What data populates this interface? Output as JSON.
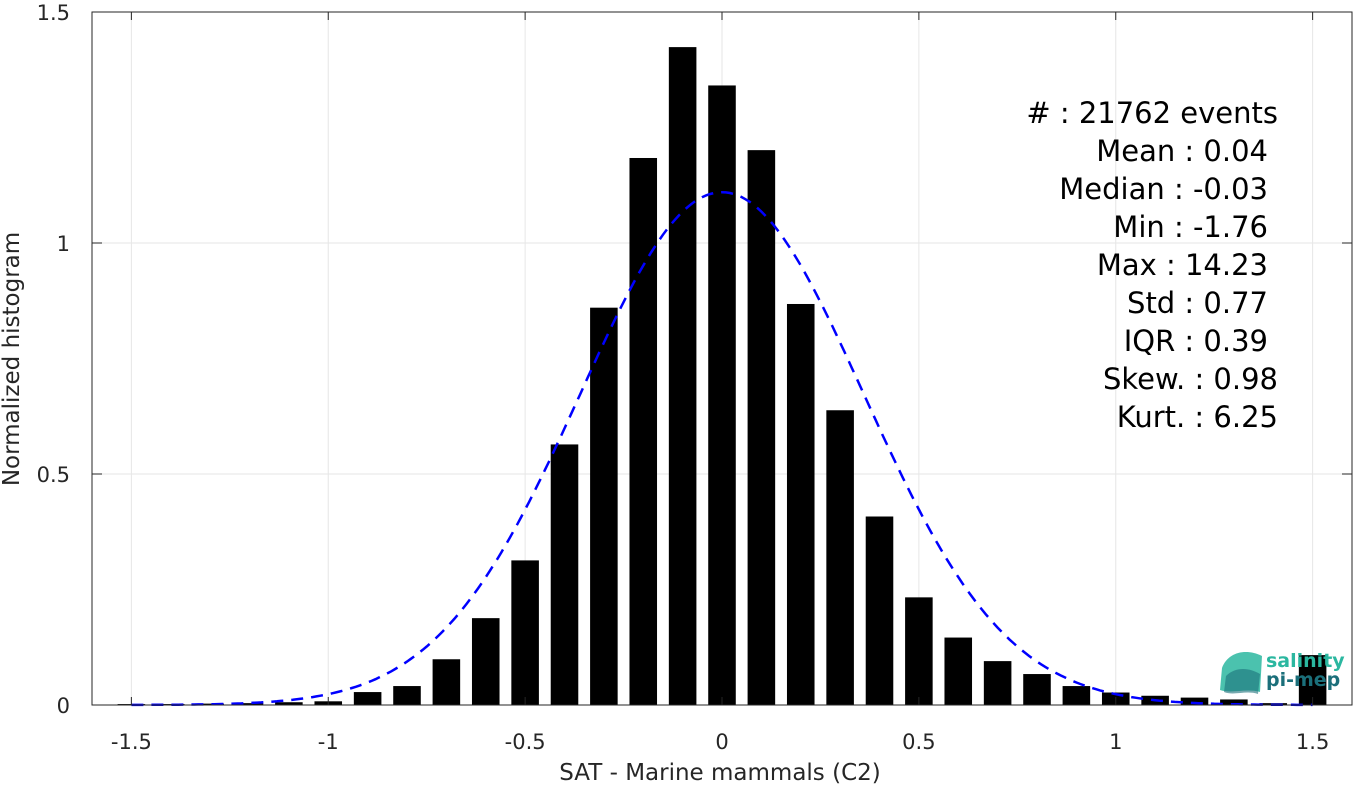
{
  "chart_data": {
    "type": "bar",
    "xlabel": "SAT - Marine mammals (C2)",
    "ylabel": "Normalized histogram",
    "xlim": [
      -1.6,
      1.6
    ],
    "ylim": [
      0,
      1.5
    ],
    "xticks": [
      "-1.5",
      "-1",
      "-0.5",
      "0",
      "0.5",
      "1",
      "1.5"
    ],
    "yticks": [
      "0",
      "0.5",
      "1",
      "1.5"
    ],
    "grid": true,
    "bar_color": "#000000",
    "bins": {
      "x": [
        -1.5,
        -1.4,
        -1.3,
        -1.2,
        -1.1,
        -1.0,
        -0.9,
        -0.8,
        -0.7,
        -0.6,
        -0.5,
        -0.4,
        -0.3,
        -0.2,
        -0.1,
        0.0,
        0.1,
        0.2,
        0.3,
        0.4,
        0.5,
        0.6,
        0.7,
        0.8,
        0.9,
        1.0,
        1.1,
        1.2,
        1.3,
        1.4,
        1.5
      ],
      "values": [
        0.002,
        0.002,
        0.003,
        0.004,
        0.006,
        0.008,
        0.028,
        0.041,
        0.099,
        0.188,
        0.313,
        0.564,
        0.86,
        1.184,
        1.424,
        1.341,
        1.201,
        0.868,
        0.638,
        0.408,
        0.233,
        0.146,
        0.095,
        0.067,
        0.041,
        0.027,
        0.02,
        0.016,
        0.012,
        0.004,
        0.108
      ]
    },
    "fit_curve": {
      "style": "dashed",
      "color": "#0000ff",
      "mean": 0.0,
      "std": 0.36,
      "peak": 1.11
    },
    "stats": [
      "#  : 21762 events",
      "Mean : 0.04",
      "Median : -0.03",
      "Min : -1.76",
      "Max : 14.23",
      "Std : 0.77",
      "IQR : 0.39",
      "Skew. : 0.98",
      "Kurt. : 6.25"
    ],
    "logo": {
      "line1": "salinity",
      "line2": "pi-mep",
      "color1": "#2bb7a0",
      "color2": "#1b6f7a"
    }
  }
}
